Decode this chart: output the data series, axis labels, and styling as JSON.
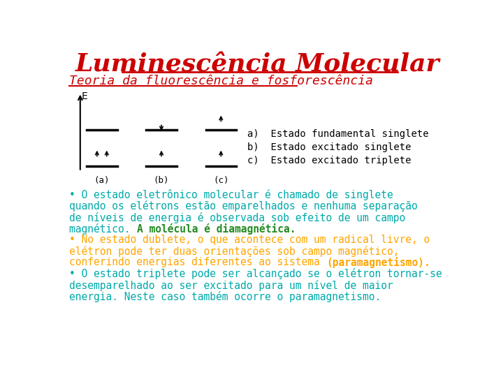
{
  "title": "Luminescência Molecular",
  "subtitle": "Teoria da fluorescência e fosforescência",
  "title_color": "#CC0000",
  "subtitle_color": "#CC0000",
  "legend_items": [
    {
      "label": "a)  Estado fundamental singlete",
      "color": "#000000"
    },
    {
      "label": "b)  Estado excitado singlete",
      "color": "#000000"
    },
    {
      "label": "c)  Estado excitado triplete",
      "color": "#000000"
    }
  ],
  "teal": "#00AAAA",
  "green": "#228B22",
  "orange": "#FFA500",
  "bg_color": "#FFFFFF",
  "font_size_title": 26,
  "font_size_subtitle": 13,
  "font_size_legend": 10,
  "font_size_body": 10.5
}
